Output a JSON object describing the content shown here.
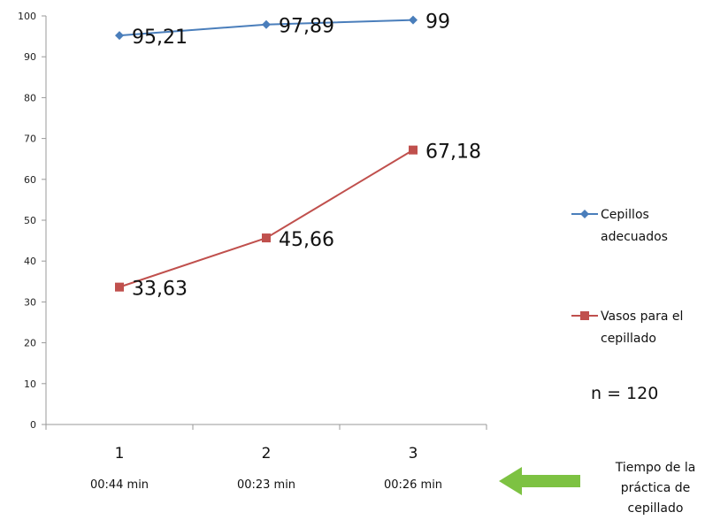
{
  "chart_data": {
    "type": "line",
    "categories": [
      "1",
      "2",
      "3"
    ],
    "category_sublabels": [
      "00:44 min",
      "00:23 min",
      "00:26 min"
    ],
    "ylim": [
      0,
      100
    ],
    "yticks": [
      0,
      10,
      20,
      30,
      40,
      50,
      60,
      70,
      80,
      90,
      100
    ],
    "series": [
      {
        "name_lines": [
          "Cepillos",
          "adecuados"
        ],
        "values": [
          95.21,
          97.89,
          99
        ],
        "value_labels": [
          "95,21",
          "97,89",
          "99"
        ],
        "color": "#4a7ebb",
        "marker": "diamond"
      },
      {
        "name_lines": [
          "Vasos para el",
          "cepillado"
        ],
        "values": [
          33.63,
          45.66,
          67.18
        ],
        "value_labels": [
          "33,63",
          "45,66",
          "67,18"
        ],
        "color": "#c0504d",
        "marker": "square"
      }
    ],
    "legend_position": "right",
    "grid": false
  },
  "annotation": {
    "note": "n = 120"
  },
  "side_caption": {
    "lines": [
      "Tiempo de la",
      "práctica de",
      "cepillado"
    ]
  },
  "arrow_color": "#7dc242"
}
